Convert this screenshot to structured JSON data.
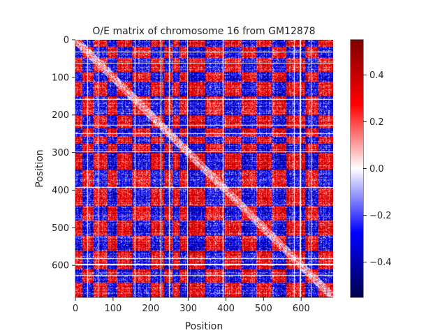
{
  "chart_data": {
    "type": "heatmap",
    "title": "O/E matrix of chromosome 16 from GM12878",
    "xlabel": "Position",
    "ylabel": "Position",
    "xlim": [
      0,
      685
    ],
    "ylim": [
      685,
      0
    ],
    "x_ticks": [
      0,
      100,
      200,
      300,
      400,
      500,
      600
    ],
    "x_tick_labels": [
      "0",
      "100",
      "200",
      "300",
      "400",
      "500",
      "600"
    ],
    "y_ticks": [
      0,
      100,
      200,
      300,
      400,
      500,
      600
    ],
    "y_tick_labels": [
      "0",
      "100",
      "200",
      "300",
      "400",
      "500",
      "600"
    ],
    "colormap": "seismic",
    "colormap_stops": [
      "#00004c",
      "#0000ff",
      "#ffffff",
      "#ff0000",
      "#800000"
    ],
    "missing_value_color": "#ffffff",
    "colorbar": {
      "vmin": -0.55,
      "vmax": 0.55,
      "ticks": [
        -0.4,
        -0.2,
        0.0,
        0.2,
        0.4
      ],
      "tick_labels": [
        "−0.4",
        "−0.2",
        "0.0",
        "0.2",
        "0.4"
      ]
    },
    "grid": false,
    "legend": "none",
    "matrix_size": 685,
    "block_boundaries": [
      0,
      18,
      48,
      85,
      110,
      150,
      200,
      235,
      258,
      275,
      300,
      345,
      395,
      440,
      480,
      520,
      560,
      610,
      645,
      685
    ],
    "block_compartments": [
      1,
      -1,
      1,
      -1,
      1,
      -1,
      1,
      -1,
      1,
      -1,
      1,
      -1,
      1,
      -1,
      1,
      -1,
      1,
      -1,
      1
    ]
  }
}
